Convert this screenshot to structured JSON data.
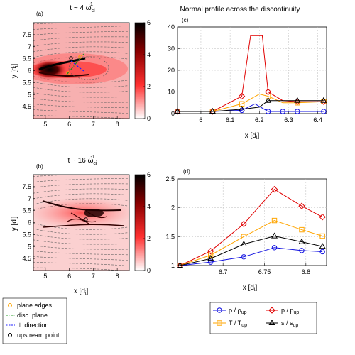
{
  "figure": {
    "title_right": "Normal profile across the discontinuity"
  },
  "chart_data": [
    {
      "id": "a",
      "type": "heatmap",
      "panel_label": "(a)",
      "title": "t ~ 4 ω",
      "title_sub": "ci",
      "title_sup": "-1",
      "xlabel": "x [d",
      "xlabel_sub": "i",
      "xlabel_end": "]",
      "ylabel": "y [d",
      "ylabel_sub": "i",
      "ylabel_end": "]",
      "xlim": [
        4.5,
        8.5
      ],
      "ylim": [
        4.0,
        8.0
      ],
      "xticks": [
        "5",
        "6",
        "7",
        "8"
      ],
      "xtick_values": [
        5,
        6,
        7,
        8
      ],
      "yticks": [
        "4.5",
        "5",
        "5.5",
        "6",
        "6.5",
        "7",
        "7.5"
      ],
      "ytick_values": [
        4.5,
        5,
        5.5,
        6,
        6.5,
        7,
        7.5
      ],
      "colorbar": {
        "min": 0,
        "max": 6,
        "ticks": [
          "0",
          "2",
          "4",
          "6"
        ],
        "tick_values": [
          0,
          2,
          4,
          6
        ],
        "colors": [
          "#ffffff",
          "#ff2a2a",
          "#8a0000",
          "#000000"
        ]
      },
      "background_value": 1.2,
      "markers": {
        "plane_edges": [
          [
            6.42,
            6.05
          ],
          [
            6.62,
            6.5
          ]
        ],
        "upstream_point": [
          6.2,
          6.4
        ]
      }
    },
    {
      "id": "b",
      "type": "heatmap",
      "panel_label": "(b)",
      "title": "t ~ 16 ω",
      "title_sub": "ci",
      "title_sup": "-1",
      "xlabel": "x [d",
      "xlabel_sub": "i",
      "xlabel_end": "]",
      "ylabel": "y [d",
      "ylabel_sub": "i",
      "ylabel_end": "]",
      "xlim": [
        4.5,
        8.5
      ],
      "ylim": [
        4.0,
        8.0
      ],
      "xticks": [
        "5",
        "6",
        "7",
        "8"
      ],
      "xtick_values": [
        5,
        6,
        7,
        8
      ],
      "yticks": [
        "4.5",
        "5",
        "5.5",
        "6",
        "6.5",
        "7",
        "7.5"
      ],
      "ytick_values": [
        4.5,
        5,
        5.5,
        6,
        6.5,
        7,
        7.5
      ],
      "colorbar": {
        "min": 0,
        "max": 6,
        "ticks": [
          "0",
          "2",
          "4",
          "6"
        ],
        "tick_values": [
          0,
          2,
          4,
          6
        ],
        "colors": [
          "#ffffff",
          "#ff2a2a",
          "#8a0000",
          "#000000"
        ]
      },
      "background_value": 1.0,
      "markers": {
        "upstream_point": [
          6.65,
          6.2
        ]
      }
    },
    {
      "id": "c",
      "type": "line",
      "panel_label": "(c)",
      "xlabel": "x [d",
      "xlabel_sub": "i",
      "xlabel_end": "]",
      "xlim": [
        5.92,
        6.43
      ],
      "ylim": [
        0,
        40
      ],
      "xticks": [
        "6",
        "6.1",
        "6.2",
        "6.3",
        "6.4"
      ],
      "xtick_values": [
        6.0,
        6.1,
        6.2,
        6.3,
        6.4
      ],
      "yticks": [
        "0",
        "10",
        "20",
        "30",
        "40"
      ],
      "ytick_values": [
        0,
        10,
        20,
        30,
        40
      ],
      "grid": true,
      "series": [
        {
          "name": "ρ / ρ",
          "color": "#1010e0",
          "marker": "circle",
          "x": [
            5.92,
            6.04,
            6.14,
            6.185,
            6.23,
            6.28,
            6.33,
            6.42
          ],
          "y": [
            1,
            1,
            1.5,
            4.5,
            1,
            1,
            1,
            1
          ],
          "markers_at": [
            5.92,
            6.04,
            6.14,
            6.23,
            6.28,
            6.33,
            6.42
          ]
        },
        {
          "name": "p / p",
          "color": "#e00000",
          "marker": "diamond",
          "x": [
            5.92,
            6.04,
            6.14,
            6.17,
            6.21,
            6.23,
            6.28,
            6.33,
            6.42
          ],
          "y": [
            1,
            1,
            8,
            36,
            36,
            10,
            6,
            5.5,
            5.5
          ],
          "markers_at": [
            5.92,
            6.04,
            6.14,
            6.23,
            6.33,
            6.42
          ]
        },
        {
          "name": "T / T",
          "color": "#ffa500",
          "marker": "square",
          "x": [
            5.92,
            6.04,
            6.14,
            6.2,
            6.23,
            6.28,
            6.33,
            6.42
          ],
          "y": [
            1,
            1,
            4.5,
            9,
            8,
            5,
            5,
            5.5
          ],
          "markers_at": [
            5.92,
            6.04,
            6.14,
            6.23,
            6.33,
            6.42
          ]
        },
        {
          "name": "s / s",
          "color": "#000000",
          "marker": "triangle",
          "x": [
            5.92,
            6.04,
            6.14,
            6.2,
            6.23,
            6.28,
            6.33,
            6.42
          ],
          "y": [
            1,
            1,
            2,
            3,
            6,
            6,
            6,
            6
          ],
          "markers_at": [
            5.92,
            6.04,
            6.14,
            6.23,
            6.33,
            6.42
          ]
        }
      ]
    },
    {
      "id": "d",
      "type": "line",
      "panel_label": "(d)",
      "xlabel": "x [d",
      "xlabel_sub": "i",
      "xlabel_end": "]",
      "xlim": [
        6.645,
        6.825
      ],
      "ylim": [
        1,
        2.5
      ],
      "xticks": [
        "6.7",
        "6.75",
        "6.8"
      ],
      "xtick_values": [
        6.7,
        6.75,
        6.8
      ],
      "yticks": [
        "1",
        "1.5",
        "2",
        "2.5"
      ],
      "ytick_values": [
        1,
        1.5,
        2,
        2.5
      ],
      "grid": true,
      "series": [
        {
          "name": "ρ / ρ",
          "sub": "up",
          "color": "#1010e0",
          "marker": "circle",
          "x": [
            6.648,
            6.685,
            6.725,
            6.762,
            6.795,
            6.82
          ],
          "y": [
            1.0,
            1.06,
            1.15,
            1.31,
            1.26,
            1.24
          ]
        },
        {
          "name": "p / p",
          "sub": "up",
          "color": "#e00000",
          "marker": "diamond",
          "x": [
            6.648,
            6.685,
            6.725,
            6.762,
            6.795,
            6.82
          ],
          "y": [
            1.0,
            1.25,
            1.72,
            2.32,
            2.03,
            1.84
          ]
        },
        {
          "name": "T / T",
          "sub": "up",
          "color": "#ffa500",
          "marker": "square",
          "x": [
            6.648,
            6.685,
            6.725,
            6.762,
            6.795,
            6.82
          ],
          "y": [
            1.0,
            1.18,
            1.5,
            1.78,
            1.62,
            1.51
          ]
        },
        {
          "name": "s / s",
          "sub": "up",
          "color": "#000000",
          "marker": "triangle",
          "x": [
            6.648,
            6.685,
            6.725,
            6.762,
            6.795,
            6.82
          ],
          "y": [
            1.0,
            1.12,
            1.37,
            1.51,
            1.41,
            1.33
          ]
        }
      ]
    }
  ],
  "legend_left": [
    {
      "label": "plane edges",
      "kind": "circle",
      "color": "#ffa500"
    },
    {
      "label": "disc. plane",
      "kind": "dashdot",
      "color": "#2aa02a"
    },
    {
      "label": "⊥ direction",
      "kind": "dashed",
      "color": "#2020ff"
    },
    {
      "label": "upstream point",
      "kind": "circle",
      "color": "#000000"
    }
  ],
  "legend_right": [
    {
      "label": "ρ / ρ",
      "sub": "up",
      "color": "#1010e0",
      "marker": "circle"
    },
    {
      "label": "p / p",
      "sub": "up",
      "color": "#e00000",
      "marker": "diamond"
    },
    {
      "label": "T / T",
      "sub": "up",
      "color": "#ffa500",
      "marker": "square"
    },
    {
      "label": "s / s",
      "sub": "up",
      "color": "#000000",
      "marker": "triangle"
    }
  ]
}
